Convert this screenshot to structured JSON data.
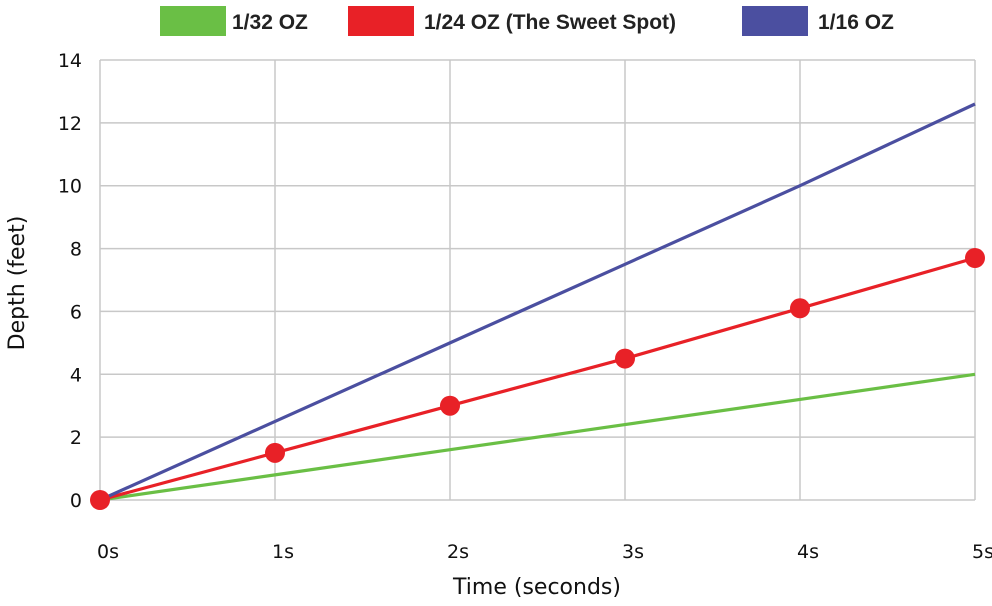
{
  "chart_data": {
    "type": "line",
    "x": [
      0,
      1,
      2,
      3,
      4,
      5
    ],
    "x_tick_labels": [
      "0s",
      "1s",
      "2s",
      "3s",
      "4s",
      "5s"
    ],
    "y_ticks": [
      0,
      2,
      4,
      6,
      8,
      10,
      12,
      14
    ],
    "xlim": [
      0,
      5
    ],
    "ylim": [
      0,
      14
    ],
    "xlabel": "Time (seconds)",
    "ylabel": "Depth (feet)",
    "grid": true,
    "legend_position": "top",
    "series": [
      {
        "name": "1/32 OZ",
        "color": "#6abf45",
        "values": [
          0,
          0.8,
          1.6,
          2.4,
          3.2,
          4.0
        ],
        "markers": false
      },
      {
        "name": "1/24 OZ (The Sweet Spot)",
        "color": "#e82127",
        "values": [
          0,
          1.5,
          3.0,
          4.5,
          6.1,
          7.7
        ],
        "markers": true
      },
      {
        "name": "1/16 OZ",
        "color": "#4b4fa0",
        "values": [
          0,
          2.5,
          5.0,
          7.5,
          10.0,
          12.6
        ],
        "markers": false
      }
    ]
  }
}
